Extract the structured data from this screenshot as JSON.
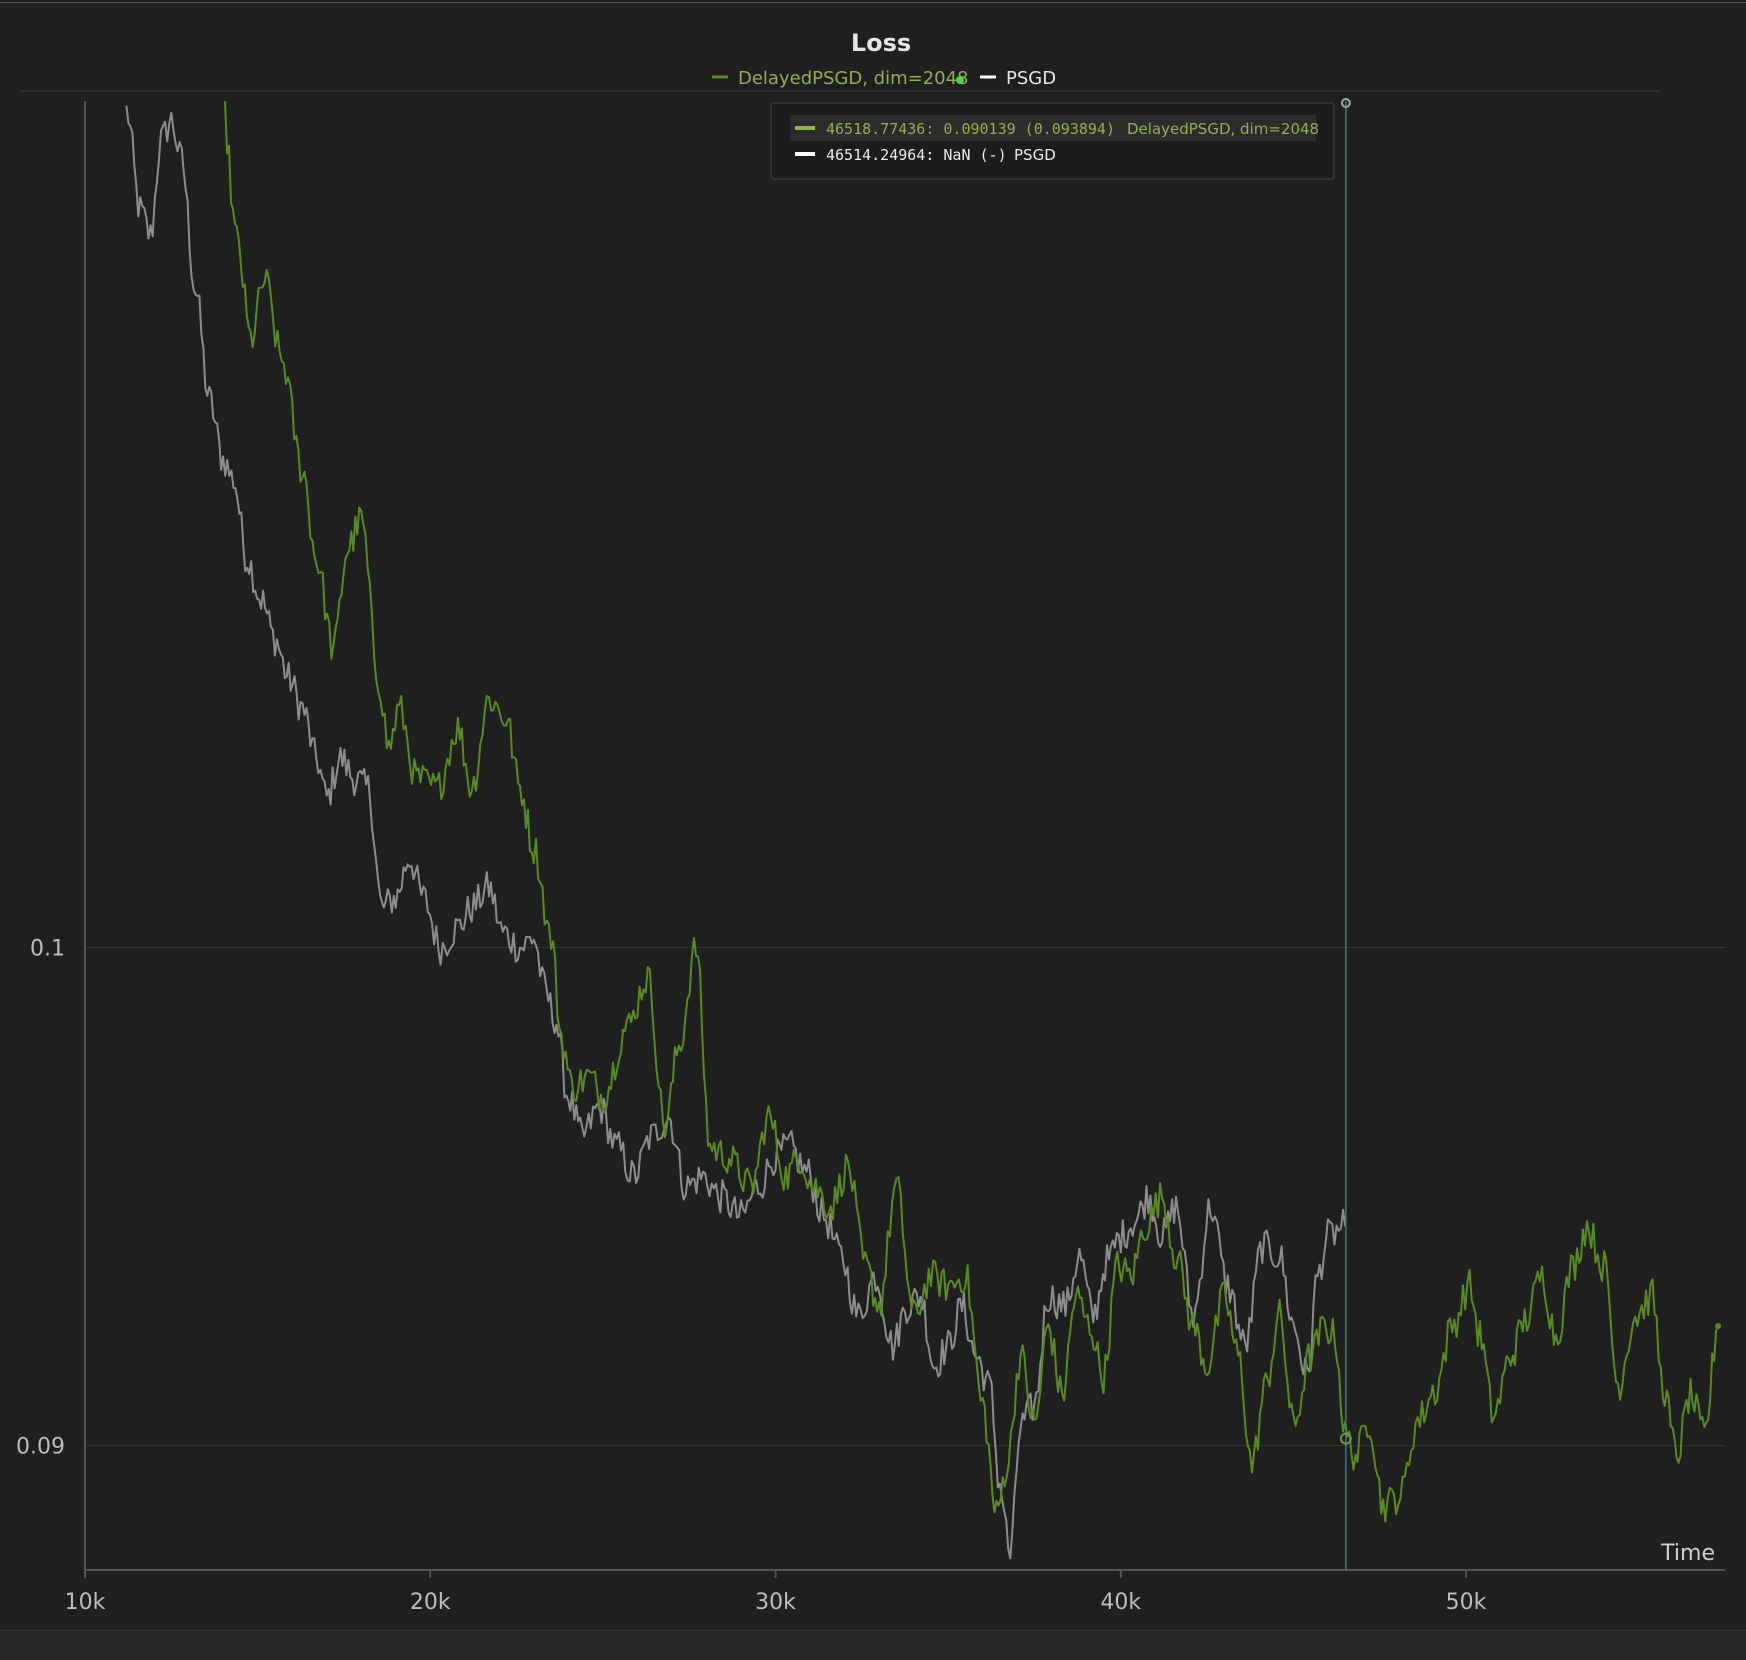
{
  "colors": {
    "background": "#1f1f1f",
    "grid": "#333333",
    "axis": "#555555",
    "series_green": "#5a8a22",
    "series_gray": "#8d8d8d",
    "legend_green": "#8fb052",
    "cursor": "#3d7b7f"
  },
  "chart_data": {
    "type": "line",
    "title": "Loss",
    "xlabel": "Time",
    "ylabel": "",
    "xlim": [
      10000,
      57500
    ],
    "ylim": [
      0.0875,
      0.117
    ],
    "x_ticks": [
      10000,
      20000,
      30000,
      40000,
      50000
    ],
    "x_tick_labels": [
      "10k",
      "20k",
      "30k",
      "40k",
      "50k"
    ],
    "y_ticks": [
      0.09,
      0.1
    ],
    "y_tick_labels": [
      "0.09",
      "0.1"
    ],
    "grid": "horizontal",
    "legend_position": "top-center",
    "series": [
      {
        "name": "DelayedPSGD, dim=2048",
        "color": "#5a8a22",
        "x": [
          14000,
          14400,
          14800,
          15200,
          15700,
          16300,
          16700,
          17200,
          17600,
          18000,
          18500,
          18800,
          19100,
          19600,
          20200,
          20800,
          21200,
          21700,
          22200,
          22600,
          23000,
          23500,
          23800,
          24100,
          24600,
          25000,
          25700,
          26300,
          26800,
          27200,
          27700,
          28100,
          28600,
          29300,
          29800,
          30300,
          30700,
          31100,
          31600,
          32100,
          32600,
          33000,
          33500,
          34000,
          34500,
          35000,
          35500,
          36000,
          36400,
          36700,
          37100,
          37500,
          37900,
          38300,
          38700,
          39100,
          39500,
          39900,
          40300,
          40700,
          41200,
          41600,
          42100,
          42500,
          43000,
          43400,
          43800,
          44200,
          44600,
          45000,
          45500,
          45900,
          46200,
          46500,
          46800,
          47200,
          47600,
          48100,
          48600,
          49100,
          49600,
          50100,
          50400,
          50800,
          51300,
          51700,
          52200,
          52600,
          53100,
          53500,
          54000,
          54400,
          54900,
          55400,
          55700,
          56100,
          56500,
          56900,
          57300
        ],
        "y": [
          0.1168,
          0.1142,
          0.1122,
          0.1134,
          0.1118,
          0.1096,
          0.1078,
          0.106,
          0.108,
          0.1086,
          0.1054,
          0.104,
          0.1048,
          0.1034,
          0.1032,
          0.1044,
          0.1032,
          0.105,
          0.1046,
          0.1032,
          0.102,
          0.1002,
          0.0982,
          0.0972,
          0.0974,
          0.097,
          0.0984,
          0.0994,
          0.0964,
          0.098,
          0.1,
          0.096,
          0.0958,
          0.0952,
          0.0966,
          0.0954,
          0.0958,
          0.0952,
          0.0948,
          0.0956,
          0.0936,
          0.0928,
          0.0952,
          0.0926,
          0.0934,
          0.0932,
          0.0934,
          0.0908,
          0.0886,
          0.0896,
          0.0918,
          0.0904,
          0.0924,
          0.091,
          0.093,
          0.0924,
          0.0914,
          0.0936,
          0.0934,
          0.0944,
          0.095,
          0.0938,
          0.0924,
          0.0916,
          0.093,
          0.0918,
          0.0896,
          0.0912,
          0.0926,
          0.0904,
          0.0918,
          0.0924,
          0.0922,
          0.0902,
          0.0898,
          0.0905,
          0.0888,
          0.089,
          0.0905,
          0.0911,
          0.0924,
          0.0932,
          0.0922,
          0.0906,
          0.0918,
          0.0925,
          0.0934,
          0.0922,
          0.0936,
          0.0944,
          0.0936,
          0.0912,
          0.0926,
          0.093,
          0.0912,
          0.0898,
          0.091,
          0.0902,
          0.0924
        ]
      },
      {
        "name": "PSGD",
        "color": "#8d8d8d",
        "x": [
          11200,
          11600,
          11900,
          12200,
          12500,
          12800,
          13200,
          13600,
          14000,
          14300,
          14700,
          15100,
          15500,
          15900,
          16300,
          16700,
          17000,
          17400,
          17800,
          18200,
          18600,
          19000,
          19400,
          19800,
          20300,
          20800,
          21200,
          21700,
          22100,
          22600,
          23000,
          23300,
          23600,
          24000,
          24400,
          24900,
          25400,
          25900,
          26400,
          26900,
          27400,
          27900,
          28400,
          29000,
          29500,
          30000,
          30400,
          30900,
          31400,
          31900,
          32400,
          32900,
          33400,
          33800,
          34200,
          34600,
          35000,
          35400,
          35800,
          36200,
          36500,
          36800,
          37100,
          37500,
          37900,
          38400,
          38800,
          39200,
          39600,
          40000,
          40400,
          40800,
          41200,
          41600,
          42100,
          42600,
          43100,
          43600,
          44100,
          44600,
          45000,
          45400,
          45700,
          46000,
          46500
        ],
        "y": [
          0.1168,
          0.1148,
          0.1143,
          0.1162,
          0.1166,
          0.1158,
          0.1132,
          0.111,
          0.1098,
          0.1094,
          0.1078,
          0.107,
          0.1062,
          0.1054,
          0.1048,
          0.1038,
          0.103,
          0.1038,
          0.1034,
          0.1032,
          0.1008,
          0.101,
          0.1018,
          0.101,
          0.1,
          0.1004,
          0.1008,
          0.1012,
          0.1003,
          0.1,
          0.1002,
          0.0992,
          0.0986,
          0.097,
          0.0962,
          0.0968,
          0.096,
          0.0954,
          0.0962,
          0.0966,
          0.0952,
          0.0954,
          0.095,
          0.0946,
          0.0952,
          0.0958,
          0.096,
          0.0955,
          0.0946,
          0.0938,
          0.0926,
          0.0934,
          0.092,
          0.0928,
          0.093,
          0.0916,
          0.092,
          0.0928,
          0.0918,
          0.0912,
          0.0892,
          0.0878,
          0.0904,
          0.0908,
          0.093,
          0.0928,
          0.0938,
          0.0926,
          0.0937,
          0.0942,
          0.0945,
          0.095,
          0.0942,
          0.0948,
          0.0926,
          0.0948,
          0.0932,
          0.092,
          0.094,
          0.0938,
          0.0924,
          0.0914,
          0.0934,
          0.0942,
          0.0944
        ]
      }
    ],
    "cursor": {
      "x": 46518.77436
    },
    "tooltip": {
      "rows": [
        {
          "value_text": "46518.77436: 0.090139 (0.093894)",
          "series_text": "DelayedPSGD, dim=2048"
        },
        {
          "value_text": "46514.24964: NaN (-)",
          "series_text": "PSGD"
        }
      ]
    }
  }
}
